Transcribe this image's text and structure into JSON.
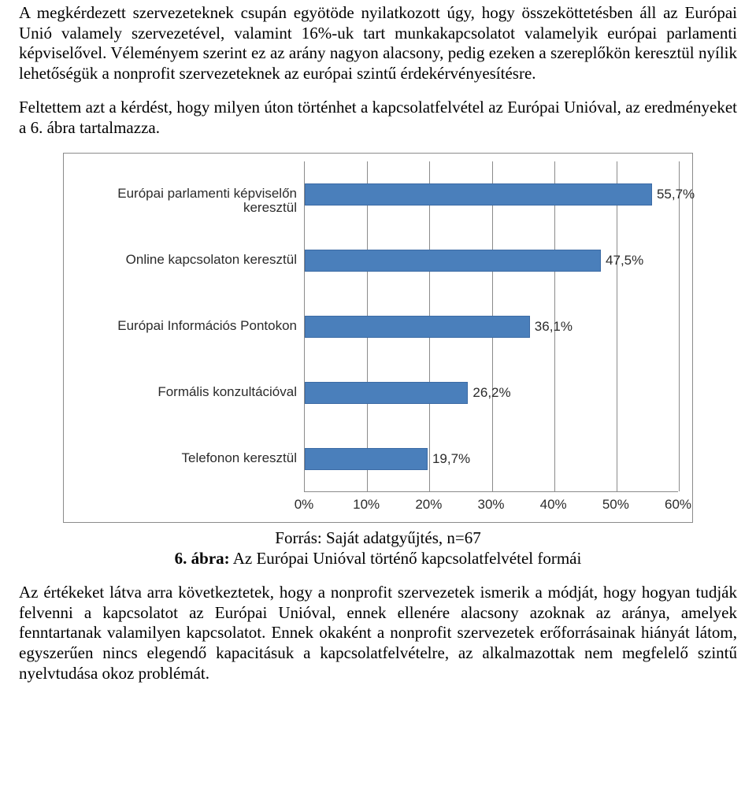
{
  "paragraphs": {
    "p1": "A megkérdezett szervezeteknek csupán egyötöde nyilatkozott úgy, hogy összeköttetésben áll az Európai Unió valamely szervezetével, valamint 16%-uk tart munkakapcsolatot valamelyik európai parlamenti képviselővel. Véleményem szerint ez az arány nagyon alacsony, pedig ezeken a szereplőkön keresztül nyílik lehetőségük a nonprofit szervezeteknek az európai szintű érdekérvényesítésre.",
    "p2": "Feltettem azt a kérdést, hogy milyen úton történhet a kapcsolatfelvétel az Európai Unióval, az eredményeket a 6. ábra tartalmazza.",
    "p3": "Az értékeket látva arra következtetek, hogy a nonprofit szervezetek ismerik a módját, hogy hogyan tudják felvenni a kapcsolatot az Európai Unióval, ennek ellenére alacsony azoknak az aránya, amelyek fenntartanak valamilyen kapcsolatot. Ennek okaként a nonprofit szervezetek erőforrásainak hiányát látom, egyszerűen nincs elegendő kapacitásuk a kapcsolatfelvételre, az alkalmazottak nem megfelelő szintű nyelvtudása okoz problémát."
  },
  "caption": {
    "source": "Forrás: Saját adatgyűjtés, n=67",
    "fig_number": "6. ábra:",
    "fig_title": " Az Európai Unióval történő kapcsolatfelvétel formái"
  },
  "chart": {
    "type": "bar-horizontal",
    "bar_color": "#4a7fbb",
    "bar_border_color": "#3c6ba5",
    "grid_color": "#8b8b8b",
    "background_color": "#ffffff",
    "label_fontsize": 17,
    "x_min": 0,
    "x_max": 60,
    "x_tick_step": 10,
    "x_ticks": [
      "0%",
      "10%",
      "20%",
      "30%",
      "40%",
      "50%",
      "60%"
    ],
    "categories": [
      "Európai parlamenti képviselőn keresztül",
      "Online kapcsolaton keresztül",
      "Európai Információs Pontokon",
      "Formális konzultációval",
      "Telefonon keresztül"
    ],
    "values": [
      55.7,
      47.5,
      36.1,
      26.2,
      19.7
    ],
    "value_labels": [
      "55,7%",
      "47,5%",
      "36,1%",
      "26,2%",
      "19,7%"
    ]
  }
}
